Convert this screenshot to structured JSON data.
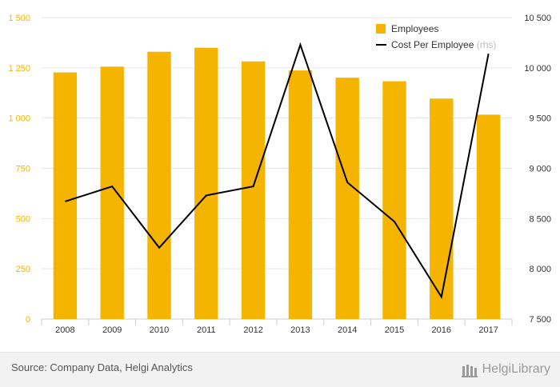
{
  "chart_data": {
    "type": "bar+line",
    "categories": [
      "2008",
      "2009",
      "2010",
      "2011",
      "2012",
      "2013",
      "2014",
      "2015",
      "2016",
      "2017"
    ],
    "series": [
      {
        "name": "Employees",
        "type": "bar",
        "axis": "left",
        "color": "#f5b400",
        "values": [
          1227,
          1256,
          1330,
          1350,
          1282,
          1237,
          1201,
          1183,
          1097,
          1017
        ]
      },
      {
        "name": "Cost Per Employee",
        "name_suffix": "(rhs)",
        "type": "line",
        "axis": "right",
        "color": "#000000",
        "values": [
          8670,
          8820,
          8210,
          8730,
          8820,
          10230,
          8860,
          8470,
          7720,
          10140
        ]
      }
    ],
    "y_left": {
      "min": 0,
      "max": 1500,
      "ticks": [
        "0",
        "250",
        "500",
        "750",
        "1 000",
        "1 250",
        "1 500"
      ],
      "tick_color": "#f5b400"
    },
    "y_right": {
      "min": 7500,
      "max": 10500,
      "ticks": [
        "7 500",
        "8 000",
        "8 500",
        "9 000",
        "9 500",
        "10 000",
        "10 500"
      ]
    },
    "grid": true,
    "legend_position": "top-right"
  },
  "footer": {
    "source": "Source: Company Data, Helgi Analytics",
    "brand": "HelgiLibrary"
  }
}
